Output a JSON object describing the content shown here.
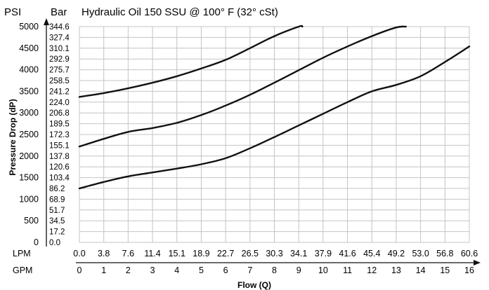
{
  "chart_data": {
    "type": "line",
    "title": "Hydraulic Oil 150 SSU @ 100° F (32° cSt)",
    "psi_header": "PSI",
    "bar_header": "Bar",
    "ylabel": "Pressure Drop (dP)",
    "xlabel": "Flow (Q)",
    "lpm_label": "LPM",
    "gpm_label": "GPM",
    "ylim": [
      0,
      5000
    ],
    "xlim": [
      0,
      16
    ],
    "psi_ticks": [
      "0",
      "500",
      "1000",
      "1500",
      "2000",
      "2500",
      "3000",
      "3500",
      "4000",
      "4500",
      "5000"
    ],
    "bar_ticks": [
      "0.0",
      "17.2",
      "34.5",
      "51.7",
      "68.9",
      "86.2",
      "103.4",
      "120.6",
      "137.8",
      "155.1",
      "172.3",
      "189.5",
      "206.8",
      "224.0",
      "241.2",
      "258.5",
      "275.7",
      "292.9",
      "310.1",
      "327.4",
      "344.6"
    ],
    "lpm_ticks": [
      "0.0",
      "3.8",
      "7.6",
      "11.4",
      "15.1",
      "18.9",
      "22.7",
      "26.5",
      "30.3",
      "34.1",
      "37.9",
      "41.6",
      "45.4",
      "49.2",
      "53.0",
      "56.8",
      "60.6"
    ],
    "gpm_ticks": [
      "0",
      "1",
      "2",
      "3",
      "4",
      "5",
      "6",
      "7",
      "8",
      "9",
      "10",
      "11",
      "12",
      "13",
      "14",
      "15",
      "16"
    ],
    "series": [
      {
        "x": [
          0,
          1,
          2,
          3,
          4,
          5,
          6,
          7,
          8,
          9,
          9.15
        ],
        "y": [
          3370,
          3460,
          3570,
          3700,
          3850,
          4030,
          4230,
          4500,
          4780,
          5000,
          5000
        ]
      },
      {
        "x": [
          0,
          1,
          2,
          3,
          4,
          5,
          6,
          7,
          8,
          9,
          10,
          11,
          12,
          13,
          13.4
        ],
        "y": [
          2220,
          2400,
          2560,
          2650,
          2770,
          2950,
          3170,
          3420,
          3700,
          3990,
          4280,
          4540,
          4780,
          4980,
          5000
        ]
      },
      {
        "x": [
          0,
          1,
          2,
          3,
          4,
          5,
          6,
          7,
          8,
          9,
          10,
          11,
          12,
          13,
          14,
          15,
          16
        ],
        "y": [
          1250,
          1400,
          1530,
          1620,
          1710,
          1810,
          1950,
          2180,
          2440,
          2710,
          2980,
          3250,
          3500,
          3650,
          3850,
          4180,
          4540
        ]
      }
    ]
  }
}
